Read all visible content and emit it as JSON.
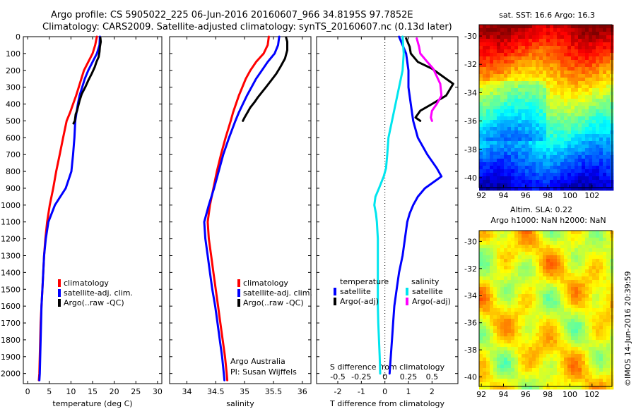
{
  "header": {
    "title_line1": "Argo profile: CS 5905022_225 06-Jun-2016 20160607_966 34.8195S 97.7852E",
    "title_line2": "Climatology: CARS2009. Satellite-adjusted climatology: synTS_20160607.nc (0.13d later)"
  },
  "credits": {
    "line1": "Argo Australia",
    "line2": "PI: Susan Wijffels",
    "imos": "©IMOS 14-Jun-2016 20:39:59"
  },
  "colors": {
    "climatology": "#ff0000",
    "satellite": "#0000ff",
    "argo": "#000000",
    "sal_satellite": "#00e5ee",
    "sal_argo": "#ff00ff"
  },
  "chart_data": [
    {
      "type": "line",
      "name": "temperature-panel",
      "xlabel": "temperature (deg C)",
      "xlim": [
        -1,
        31
      ],
      "ylim": [
        2060,
        0
      ],
      "xticks": [
        0,
        5,
        10,
        15,
        20,
        25,
        30
      ],
      "yticks": [
        0,
        100,
        200,
        300,
        400,
        500,
        600,
        700,
        800,
        900,
        1000,
        1100,
        1200,
        1300,
        1400,
        1500,
        1600,
        1700,
        1800,
        1900,
        2000
      ],
      "legend": [
        "climatology",
        "satellite-adj. clim.",
        "Argo(..raw -QC)"
      ],
      "series": [
        {
          "name": "climatology",
          "color": "#ff0000",
          "x": [
            16.0,
            15.6,
            15.0,
            14.0,
            13.0,
            12.4,
            11.8,
            11.2,
            10.5,
            9.8,
            9.0,
            8.2,
            7.4,
            6.6,
            5.9,
            5.1,
            4.5,
            4.1,
            3.8,
            3.6,
            3.4,
            3.2,
            3.0,
            2.9,
            2.8,
            2.7,
            2.6
          ],
          "y": [
            0,
            50,
            100,
            150,
            200,
            250,
            300,
            350,
            400,
            450,
            500,
            600,
            700,
            800,
            900,
            1000,
            1100,
            1200,
            1300,
            1400,
            1500,
            1600,
            1700,
            1800,
            1900,
            2000,
            2040
          ]
        },
        {
          "name": "satellite-adj. clim.",
          "color": "#0000ff",
          "x": [
            16.7,
            16.6,
            16.0,
            15.0,
            14.0,
            13.2,
            12.6,
            12.0,
            11.6,
            11.3,
            11.0,
            10.8,
            10.5,
            10.1,
            8.8,
            6.3,
            4.8,
            4.2,
            3.8,
            3.6,
            3.4,
            3.2,
            3.1,
            3.0,
            2.9,
            2.8,
            2.7
          ],
          "y": [
            0,
            50,
            100,
            150,
            200,
            250,
            300,
            350,
            400,
            450,
            500,
            600,
            700,
            800,
            900,
            1000,
            1100,
            1200,
            1300,
            1400,
            1500,
            1600,
            1700,
            1800,
            1900,
            2000,
            2040
          ]
        },
        {
          "name": "Argo(..raw -QC)",
          "color": "#000000",
          "x": [
            16.8,
            16.9,
            16.7,
            16.6,
            16.4,
            15.9,
            15.5,
            14.8,
            14.0,
            13.3,
            12.5,
            12.0,
            11.7,
            11.4,
            11.1,
            11.0,
            10.9,
            10.6
          ],
          "y": [
            5,
            30,
            60,
            90,
            120,
            150,
            180,
            220,
            260,
            300,
            340,
            380,
            410,
            440,
            460,
            480,
            500,
            515
          ]
        }
      ]
    },
    {
      "type": "line",
      "name": "salinity-panel",
      "xlabel": "salinity",
      "xlim": [
        33.7,
        36.15
      ],
      "ylim": [
        2060,
        0
      ],
      "xticks": [
        34,
        34.5,
        35,
        35.5,
        36
      ],
      "legend": [
        "climatology",
        "satellite-adj. clim.",
        "Argo(..raw -QC)"
      ],
      "series": [
        {
          "name": "climatology",
          "color": "#ff0000",
          "x": [
            35.42,
            35.4,
            35.33,
            35.2,
            35.1,
            35.02,
            34.96,
            34.9,
            34.85,
            34.8,
            34.76,
            34.67,
            34.59,
            34.52,
            34.46,
            34.4,
            34.36,
            34.38,
            34.42,
            34.46,
            34.5,
            34.54,
            34.58,
            34.62,
            34.66,
            34.69,
            34.7
          ],
          "y": [
            0,
            50,
            100,
            150,
            200,
            250,
            300,
            350,
            400,
            450,
            500,
            600,
            700,
            800,
            900,
            1000,
            1100,
            1200,
            1300,
            1400,
            1500,
            1600,
            1700,
            1800,
            1900,
            2000,
            2040
          ]
        },
        {
          "name": "satellite-adj. clim.",
          "color": "#0000ff",
          "x": [
            35.6,
            35.58,
            35.52,
            35.4,
            35.3,
            35.2,
            35.12,
            35.04,
            34.97,
            34.9,
            34.84,
            34.73,
            34.63,
            34.55,
            34.47,
            34.38,
            34.3,
            34.32,
            34.36,
            34.4,
            34.44,
            34.49,
            34.53,
            34.57,
            34.61,
            34.64,
            34.65
          ],
          "y": [
            0,
            50,
            100,
            150,
            200,
            250,
            300,
            350,
            400,
            450,
            500,
            600,
            700,
            800,
            900,
            1000,
            1100,
            1200,
            1300,
            1400,
            1500,
            1600,
            1700,
            1800,
            1900,
            2000,
            2040
          ]
        },
        {
          "name": "Argo(..raw -QC)",
          "color": "#000000",
          "x": [
            35.72,
            35.74,
            35.74,
            35.7,
            35.62,
            35.55,
            35.46,
            35.37,
            35.3,
            35.23,
            35.17,
            35.1,
            35.05,
            35.0,
            34.97
          ],
          "y": [
            5,
            30,
            80,
            130,
            180,
            220,
            260,
            300,
            330,
            360,
            390,
            420,
            450,
            480,
            500
          ]
        }
      ]
    },
    {
      "type": "line",
      "name": "difference-panel",
      "xlabel": "T difference from climatology",
      "xlabel_top": "S difference from climatology",
      "xlim": [
        -2.9,
        3.1
      ],
      "ylim": [
        2060,
        0
      ],
      "xticks": [
        -2,
        -1,
        0,
        1,
        2
      ],
      "sticks": [
        -0.5,
        -0.25,
        0,
        0.25,
        0.5
      ],
      "sticks_labels": [
        "-0.5",
        "-0.25",
        "0",
        "0.25",
        "0.5"
      ],
      "legend_temperature": {
        "heading": "temperature",
        "items": [
          "satellite",
          "Argo(-adj)"
        ]
      },
      "legend_salinity": {
        "heading": "salinity",
        "items": [
          "satellite",
          "Argo(-adj)"
        ]
      },
      "series": [
        {
          "name": "satellite",
          "group": "temperature",
          "color": "#0000ff",
          "x": [
            0.6,
            0.9,
            1.0,
            1.0,
            1.1,
            1.2,
            1.4,
            1.8,
            2.2,
            2.4,
            1.7,
            1.4,
            1.2,
            1.05,
            0.95,
            0.85,
            0.75,
            0.6,
            0.5,
            0.4,
            0.35,
            0.3,
            0.25,
            0.2
          ],
          "y": [
            0,
            100,
            200,
            300,
            400,
            500,
            600,
            700,
            780,
            830,
            900,
            950,
            1000,
            1050,
            1100,
            1200,
            1300,
            1400,
            1500,
            1600,
            1700,
            1800,
            1900,
            2000
          ]
        },
        {
          "name": "Argo(-adj)",
          "group": "temperature",
          "color": "#000000",
          "x": [
            0.9,
            1.05,
            1.1,
            1.4,
            2.0,
            2.9,
            2.6,
            2.0,
            1.5,
            1.3,
            1.5
          ],
          "y": [
            10,
            60,
            100,
            150,
            190,
            280,
            350,
            400,
            440,
            480,
            500
          ]
        },
        {
          "name": "satellite",
          "group": "salinity",
          "color": "#00e5ee",
          "x": [
            0.75,
            0.8,
            0.75,
            0.6,
            0.45,
            0.3,
            0.15,
            0.1,
            0.05,
            -0.05,
            -0.25,
            -0.4,
            -0.45,
            -0.38,
            -0.34,
            -0.3,
            -0.3,
            -0.3,
            -0.3,
            -0.3,
            -0.28,
            -0.25,
            -0.22,
            -0.2
          ],
          "y": [
            0,
            100,
            200,
            300,
            400,
            500,
            600,
            700,
            780,
            830,
            900,
            950,
            1000,
            1050,
            1100,
            1200,
            1300,
            1400,
            1500,
            1600,
            1700,
            1800,
            1900,
            2000
          ]
        },
        {
          "name": "Argo(-adj)",
          "group": "salinity",
          "color": "#ff00ff",
          "x": [
            1.35,
            1.45,
            1.5,
            1.8,
            2.05,
            2.35,
            2.4,
            2.2,
            2.0,
            1.95,
            2.0
          ],
          "y": [
            10,
            60,
            100,
            150,
            190,
            280,
            350,
            400,
            440,
            480,
            500
          ]
        }
      ]
    },
    {
      "type": "heatmap",
      "name": "sst-map",
      "title": "sat. SST: 16.6  Argo: 16.3",
      "xticks": [
        92,
        94,
        96,
        98,
        100,
        102
      ],
      "yticks": [
        -30,
        -32,
        -34,
        -36,
        -38,
        -40
      ],
      "xlim": [
        91.8,
        103.8
      ],
      "ylim": [
        -40.7,
        -29.2
      ]
    },
    {
      "type": "heatmap",
      "name": "sla-map",
      "title_line1": "Altim. SLA: 0.22",
      "title_line2": "Argo h1000: NaN h2000: NaN",
      "xticks": [
        92,
        94,
        96,
        98,
        100,
        102
      ],
      "yticks": [
        -30,
        -32,
        -34,
        -36,
        -38,
        -40
      ],
      "xlim": [
        91.8,
        103.8
      ],
      "ylim": [
        -40.7,
        -29.2
      ]
    }
  ]
}
